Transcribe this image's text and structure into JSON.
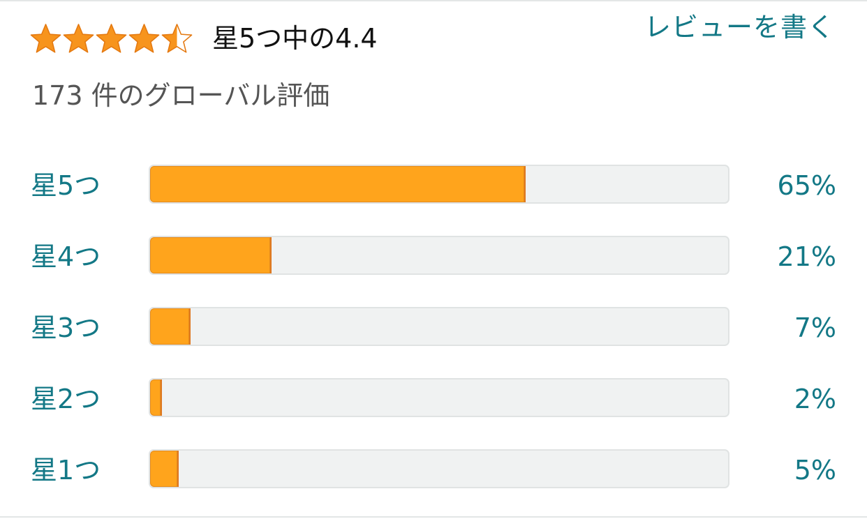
{
  "summary": {
    "rating_value": 4.4,
    "rating_max": 5,
    "rating_text": "星5つ中の4.4",
    "global_ratings_text": "173 件のグローバル評価",
    "write_review_label": "レビューを書く"
  },
  "stars": [
    {
      "icon": "star-full-icon",
      "fill": 1.0
    },
    {
      "icon": "star-full-icon",
      "fill": 1.0
    },
    {
      "icon": "star-full-icon",
      "fill": 1.0
    },
    {
      "icon": "star-full-icon",
      "fill": 1.0
    },
    {
      "icon": "star-half-icon",
      "fill": 0.5
    }
  ],
  "histogram": [
    {
      "label": "星5つ",
      "percent_text": "65%",
      "percent": 65
    },
    {
      "label": "星4つ",
      "percent_text": "21%",
      "percent": 21
    },
    {
      "label": "星3つ",
      "percent_text": "7%",
      "percent": 7
    },
    {
      "label": "星2つ",
      "percent_text": "2%",
      "percent": 2
    },
    {
      "label": "星1つ",
      "percent_text": "5%",
      "percent": 5
    }
  ],
  "colors": {
    "star": "#f7941d",
    "star_outline": "#e47911",
    "bar_fill": "#ffa41c",
    "bar_track": "#f0f2f2",
    "link": "#137886",
    "muted_text": "#555555"
  }
}
